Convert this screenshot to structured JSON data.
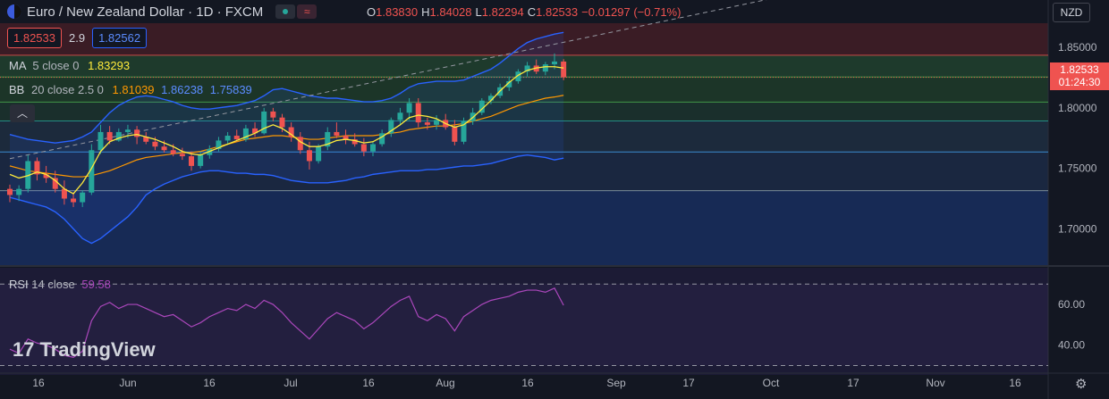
{
  "header": {
    "symbol": "Euro / New Zealand Dollar · 1D · FXCM",
    "ohlc": {
      "o_label": "O",
      "o": "1.83830",
      "h_label": "H",
      "h": "1.84028",
      "l_label": "L",
      "l": "1.82294",
      "c_label": "C",
      "c": "1.82533",
      "change": "−0.01297 (−0.71%)"
    }
  },
  "quote": {
    "bid": "1.82533",
    "spread": "2.9",
    "ask": "1.82562"
  },
  "indicators": {
    "ma": {
      "name": "MA",
      "params": "5 close 0",
      "value": "1.83293",
      "color": "#ffeb3b"
    },
    "bb": {
      "name": "BB",
      "params": "20 close 2.5 0",
      "basis": "1.81039",
      "upper": "1.86238",
      "lower": "1.75839",
      "basis_color": "#ff9800",
      "band_color": "#2962ff"
    },
    "rsi": {
      "name": "RSI",
      "params": "14 close",
      "value": "59.58",
      "color": "#ab47bc"
    }
  },
  "currency": "NZD",
  "price_tag": {
    "price": "1.82533",
    "countdown": "01:24:30"
  },
  "logo": "TradingView",
  "chart_data": {
    "type": "candlestick",
    "title": "Euro / New Zealand Dollar · 1D · FXCM",
    "x_labels": [
      "16",
      "Jun",
      "16",
      "Jul",
      "16",
      "Aug",
      "16",
      "Sep",
      "17",
      "Oct",
      "17",
      "Nov",
      "16"
    ],
    "y_ticks": [
      "1.85000",
      "1.80000",
      "1.75000",
      "1.70000"
    ],
    "ylim": [
      1.67,
      1.87
    ],
    "rsi_ticks": [
      "60.00",
      "40.00"
    ],
    "rsi_ylim": [
      28,
      78
    ],
    "horizontal_levels": [
      1.8435,
      1.8255,
      1.8048,
      1.7892,
      1.7635,
      1.7315
    ],
    "candles": [
      [
        1.733,
        1.7365,
        1.722,
        1.728
      ],
      [
        1.728,
        1.736,
        1.723,
        1.733
      ],
      [
        1.733,
        1.761,
        1.73,
        1.756
      ],
      [
        1.756,
        1.759,
        1.74,
        1.745
      ],
      [
        1.745,
        1.752,
        1.738,
        1.742
      ],
      [
        1.742,
        1.748,
        1.73,
        1.733
      ],
      [
        1.733,
        1.74,
        1.72,
        1.725
      ],
      [
        1.725,
        1.73,
        1.718,
        1.722
      ],
      [
        1.722,
        1.732,
        1.718,
        1.73
      ],
      [
        1.73,
        1.77,
        1.728,
        1.765
      ],
      [
        1.765,
        1.786,
        1.762,
        1.78
      ],
      [
        1.78,
        1.785,
        1.77,
        1.773
      ],
      [
        1.773,
        1.783,
        1.772,
        1.78
      ],
      [
        1.78,
        1.786,
        1.775,
        1.782
      ],
      [
        1.782,
        1.785,
        1.77,
        1.776
      ],
      [
        1.776,
        1.78,
        1.77,
        1.772
      ],
      [
        1.772,
        1.776,
        1.765,
        1.768
      ],
      [
        1.768,
        1.773,
        1.763,
        1.765
      ],
      [
        1.765,
        1.77,
        1.76,
        1.762
      ],
      [
        1.762,
        1.767,
        1.757,
        1.76
      ],
      [
        1.76,
        1.764,
        1.748,
        1.752
      ],
      [
        1.752,
        1.764,
        1.75,
        1.761
      ],
      [
        1.761,
        1.769,
        1.758,
        1.766
      ],
      [
        1.766,
        1.776,
        1.764,
        1.773
      ],
      [
        1.773,
        1.78,
        1.77,
        1.777
      ],
      [
        1.777,
        1.782,
        1.772,
        1.774
      ],
      [
        1.774,
        1.786,
        1.772,
        1.783
      ],
      [
        1.783,
        1.788,
        1.776,
        1.779
      ],
      [
        1.779,
        1.8,
        1.778,
        1.797
      ],
      [
        1.797,
        1.8,
        1.789,
        1.792
      ],
      [
        1.792,
        1.795,
        1.78,
        1.784
      ],
      [
        1.784,
        1.788,
        1.772,
        1.776
      ],
      [
        1.776,
        1.78,
        1.762,
        1.765
      ],
      [
        1.765,
        1.772,
        1.749,
        1.756
      ],
      [
        1.756,
        1.77,
        1.754,
        1.768
      ],
      [
        1.768,
        1.784,
        1.765,
        1.78
      ],
      [
        1.78,
        1.788,
        1.775,
        1.777
      ],
      [
        1.777,
        1.782,
        1.77,
        1.774
      ],
      [
        1.774,
        1.779,
        1.768,
        1.77
      ],
      [
        1.77,
        1.775,
        1.76,
        1.764
      ],
      [
        1.764,
        1.772,
        1.76,
        1.77
      ],
      [
        1.77,
        1.782,
        1.768,
        1.779
      ],
      [
        1.779,
        1.792,
        1.776,
        1.79
      ],
      [
        1.79,
        1.8,
        1.786,
        1.796
      ],
      [
        1.796,
        1.808,
        1.79,
        1.804
      ],
      [
        1.804,
        1.808,
        1.784,
        1.788
      ],
      [
        1.788,
        1.792,
        1.782,
        1.786
      ],
      [
        1.786,
        1.794,
        1.782,
        1.79
      ],
      [
        1.79,
        1.795,
        1.782,
        1.784
      ],
      [
        1.784,
        1.79,
        1.769,
        1.772
      ],
      [
        1.772,
        1.792,
        1.77,
        1.789
      ],
      [
        1.789,
        1.8,
        1.786,
        1.796
      ],
      [
        1.796,
        1.808,
        1.794,
        1.806
      ],
      [
        1.806,
        1.812,
        1.803,
        1.81
      ],
      [
        1.81,
        1.82,
        1.808,
        1.817
      ],
      [
        1.817,
        1.826,
        1.814,
        1.822
      ],
      [
        1.822,
        1.832,
        1.82,
        1.83
      ],
      [
        1.83,
        1.838,
        1.826,
        1.835
      ],
      [
        1.835,
        1.84,
        1.828,
        1.83
      ],
      [
        1.83,
        1.838,
        1.827,
        1.836
      ],
      [
        1.836,
        1.845,
        1.832,
        1.8383
      ],
      [
        1.8383,
        1.8403,
        1.8229,
        1.8253
      ]
    ],
    "ma_values": [
      1.745,
      1.742,
      1.744,
      1.747,
      1.745,
      1.74,
      1.733,
      1.729,
      1.738,
      1.75,
      1.764,
      1.772,
      1.775,
      1.777,
      1.778,
      1.776,
      1.774,
      1.771,
      1.768,
      1.764,
      1.762,
      1.761,
      1.764,
      1.767,
      1.77,
      1.773,
      1.776,
      1.779,
      1.783,
      1.786,
      1.783,
      1.778,
      1.772,
      1.768,
      1.768,
      1.77,
      1.773,
      1.774,
      1.773,
      1.771,
      1.772,
      1.776,
      1.781,
      1.786,
      1.792,
      1.794,
      1.793,
      1.791,
      1.787,
      1.784,
      1.786,
      1.792,
      1.799,
      1.806,
      1.814,
      1.821,
      1.827,
      1.831,
      1.833,
      1.834,
      1.834,
      1.8329
    ],
    "bb_basis": [
      1.752,
      1.75,
      1.748,
      1.747,
      1.746,
      1.745,
      1.744,
      1.743,
      1.743,
      1.744,
      1.746,
      1.748,
      1.751,
      1.754,
      1.757,
      1.759,
      1.76,
      1.761,
      1.762,
      1.763,
      1.763,
      1.764,
      1.766,
      1.768,
      1.77,
      1.772,
      1.774,
      1.775,
      1.776,
      1.777,
      1.777,
      1.776,
      1.775,
      1.774,
      1.774,
      1.775,
      1.776,
      1.777,
      1.777,
      1.777,
      1.777,
      1.778,
      1.779,
      1.78,
      1.782,
      1.783,
      1.784,
      1.785,
      1.785,
      1.786,
      1.787,
      1.789,
      1.791,
      1.793,
      1.796,
      1.799,
      1.802,
      1.804,
      1.806,
      1.808,
      1.809,
      1.8104
    ],
    "bb_upper": [
      1.778,
      1.776,
      1.774,
      1.773,
      1.772,
      1.771,
      1.772,
      1.773,
      1.776,
      1.78,
      1.788,
      1.796,
      1.802,
      1.806,
      1.809,
      1.81,
      1.809,
      1.807,
      1.805,
      1.802,
      1.8,
      1.799,
      1.799,
      1.8,
      1.801,
      1.802,
      1.804,
      1.806,
      1.81,
      1.815,
      1.816,
      1.814,
      1.812,
      1.81,
      1.809,
      1.808,
      1.808,
      1.807,
      1.806,
      1.805,
      1.805,
      1.806,
      1.808,
      1.812,
      1.817,
      1.82,
      1.821,
      1.822,
      1.822,
      1.822,
      1.823,
      1.826,
      1.829,
      1.832,
      1.837,
      1.843,
      1.849,
      1.854,
      1.857,
      1.859,
      1.861,
      1.8624
    ],
    "bb_lower": [
      1.726,
      1.724,
      1.722,
      1.72,
      1.718,
      1.714,
      1.708,
      1.7,
      1.692,
      1.688,
      1.692,
      1.698,
      1.704,
      1.71,
      1.718,
      1.728,
      1.733,
      1.737,
      1.74,
      1.743,
      1.745,
      1.747,
      1.748,
      1.748,
      1.747,
      1.746,
      1.746,
      1.745,
      1.745,
      1.744,
      1.742,
      1.74,
      1.739,
      1.738,
      1.738,
      1.738,
      1.739,
      1.74,
      1.742,
      1.743,
      1.745,
      1.746,
      1.747,
      1.748,
      1.748,
      1.748,
      1.749,
      1.749,
      1.75,
      1.751,
      1.752,
      1.752,
      1.753,
      1.754,
      1.756,
      1.758,
      1.76,
      1.761,
      1.76,
      1.759,
      1.757,
      1.7584
    ],
    "rsi_values": [
      38,
      36,
      43,
      41,
      40,
      38,
      35,
      34,
      37,
      52,
      59,
      61,
      58,
      60,
      60,
      58,
      56,
      54,
      55,
      52,
      49,
      51,
      54,
      56,
      58,
      57,
      60,
      58,
      62,
      60,
      56,
      51,
      47,
      43,
      48,
      53,
      56,
      54,
      52,
      48,
      51,
      55,
      59,
      62,
      64,
      54,
      52,
      55,
      53,
      47,
      54,
      57,
      60,
      62,
      63,
      64,
      66,
      67,
      67,
      66,
      68,
      59.58
    ],
    "trendline": {
      "from": [
        0,
        1.758
      ],
      "to": [
        72,
        1.872
      ]
    }
  }
}
